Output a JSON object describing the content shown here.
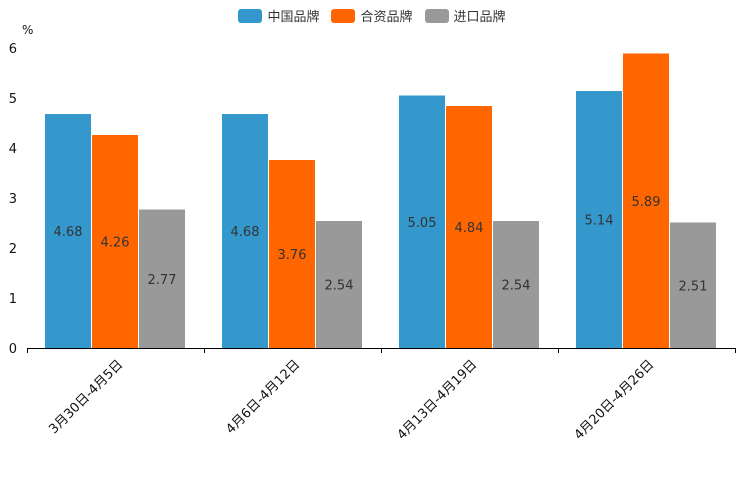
{
  "chart_data": {
    "type": "bar",
    "title": "",
    "xlabel": "",
    "ylabel": "%",
    "ylim": [
      0,
      6
    ],
    "yticks": [
      0,
      1,
      2,
      3,
      4,
      5,
      6
    ],
    "categories": [
      "3月30日-4月5日",
      "4月6日-4月12日",
      "4月13日-4月19日",
      "4月20日-4月26日"
    ],
    "series": [
      {
        "name": "中国品牌",
        "color": "#3498cd",
        "values": [
          4.68,
          4.68,
          5.05,
          5.14
        ]
      },
      {
        "name": "合资品牌",
        "color": "#ff6600",
        "values": [
          4.26,
          3.76,
          4.84,
          5.89
        ]
      },
      {
        "name": "进口品牌",
        "color": "#999999",
        "values": [
          2.77,
          2.54,
          2.54,
          2.51
        ]
      }
    ],
    "legend_position": "top-center",
    "grid": false
  }
}
